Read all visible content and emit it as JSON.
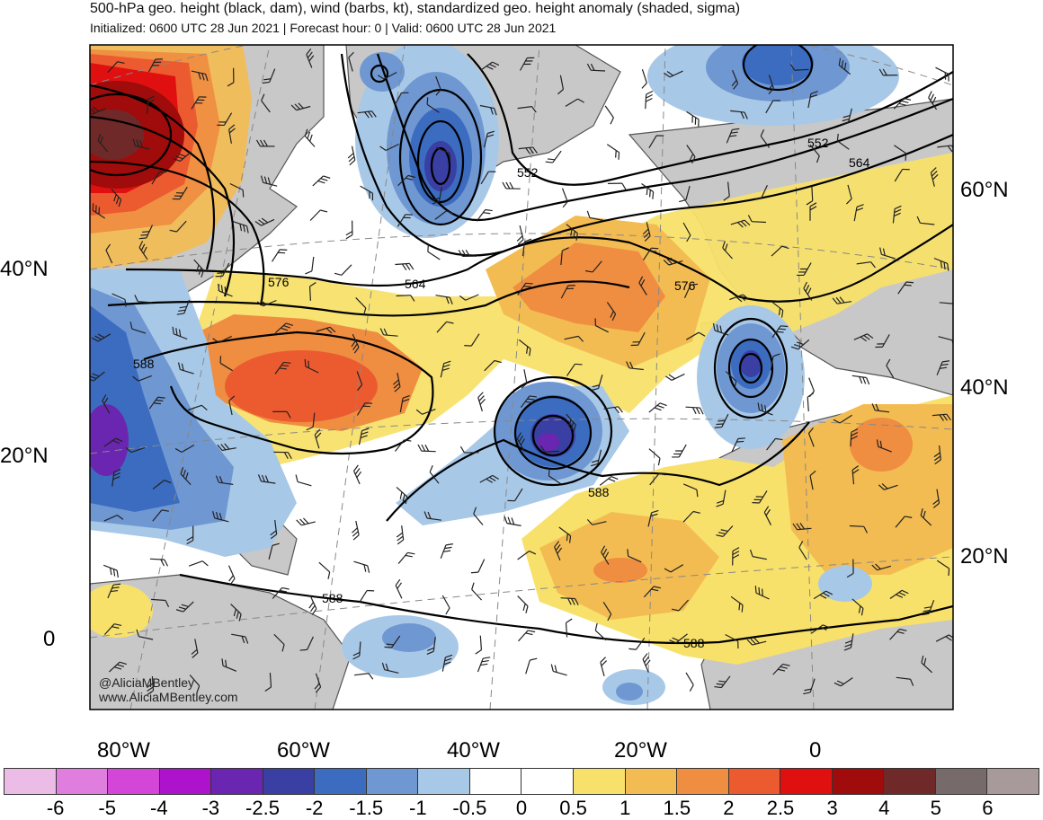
{
  "header": {
    "title": "500-hPa geo. height (black, dam), wind (barbs, kt), standardized geo. height anomaly (shaded, sigma)",
    "subtitle": "Initialized: 0600 UTC 28 Jun 2021 | Forecast hour: 0 | Valid: 0600 UTC 28 Jun 2021"
  },
  "map": {
    "latitude_labels_left": [
      "40°N",
      "20°N",
      "0"
    ],
    "latitude_labels_right": [
      "60°N",
      "40°N",
      "20°N"
    ],
    "longitude_labels": [
      "80°W",
      "60°W",
      "40°W",
      "20°W",
      "0"
    ],
    "contour_labels": [
      "552",
      "552",
      "564",
      "564",
      "576",
      "576",
      "588",
      "588",
      "588",
      "588"
    ],
    "watermark": [
      "@AliciaMBentley",
      "www.AliciaMBentley.com"
    ],
    "colors": {
      "land": "#c8c8c8",
      "contour": "#000000",
      "coastline": "#555555"
    }
  },
  "colorbar": {
    "labels": [
      "-6",
      "-5",
      "-4",
      "-3",
      "-2.5",
      "-2",
      "-1.5",
      "-1",
      "-0.5",
      "0",
      "0.5",
      "1",
      "1.5",
      "2",
      "2.5",
      "3",
      "4",
      "5",
      "6"
    ],
    "colors": [
      "#ebbde6",
      "#e07ee0",
      "#d346d8",
      "#ad13cd",
      "#6a26b0",
      "#3a3fa3",
      "#3c6cc0",
      "#6f97d2",
      "#a8c8e7",
      "#ffffff",
      "#ffffff",
      "#f8e16a",
      "#f3bc52",
      "#ef8d41",
      "#ec5b2f",
      "#e01010",
      "#a00b0b",
      "#6f2929",
      "#776a6a",
      "#a89a9a"
    ]
  }
}
